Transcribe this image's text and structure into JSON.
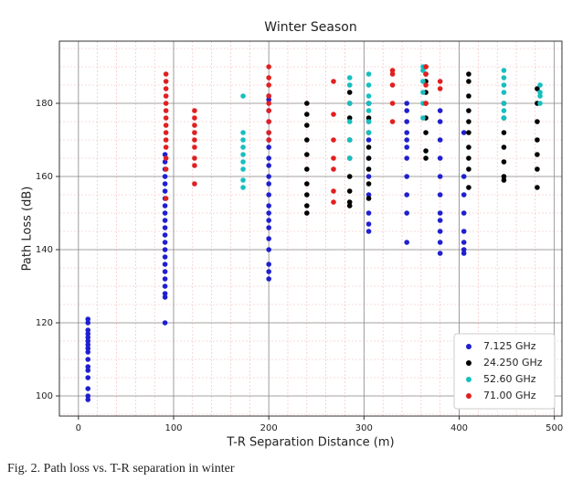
{
  "chart_data": {
    "type": "scatter",
    "title": "Winter Season",
    "x_label": "T-R Separation Distance (m)",
    "y_label": "Path Loss (dB)",
    "caption": "Fig. 2.  Path loss vs. T-R separation in winter",
    "xlim": [
      -20,
      508
    ],
    "ylim": [
      94.5,
      197
    ],
    "xticks": [
      0,
      100,
      200,
      300,
      400,
      500
    ],
    "yticks": [
      100,
      120,
      140,
      160,
      180
    ],
    "grid": true,
    "minor_grid": true,
    "legend": "lower right",
    "series": [
      {
        "name": "7.125 GHz",
        "color": "#1f1fd0",
        "x": [
          10,
          10,
          10,
          10,
          10,
          10,
          10,
          10,
          10,
          10,
          10,
          10,
          10,
          10,
          10,
          10,
          91,
          91,
          91,
          91,
          91,
          91,
          91,
          91,
          91,
          91,
          91,
          91,
          91,
          91,
          91,
          91,
          91,
          91,
          91,
          91,
          91,
          91,
          200,
          200,
          200,
          200,
          200,
          200,
          200,
          200,
          200,
          200,
          200,
          200,
          200,
          200,
          200,
          200,
          200,
          200,
          200,
          200,
          200,
          305,
          305,
          305,
          305,
          305,
          305,
          305,
          305,
          305,
          345,
          345,
          345,
          345,
          345,
          345,
          345,
          345,
          345,
          345,
          345,
          380,
          380,
          380,
          380,
          380,
          380,
          380,
          380,
          380,
          380,
          380,
          405,
          405,
          405,
          405,
          405,
          405,
          405,
          405
        ],
        "values": [
          99,
          100,
          102,
          105,
          107,
          108,
          110,
          112,
          113,
          114,
          115,
          116,
          117,
          118,
          120,
          121,
          120,
          127,
          128,
          130,
          132,
          134,
          136,
          138,
          140,
          142,
          144,
          146,
          148,
          150,
          152,
          154,
          156,
          158,
          160,
          162,
          164,
          166,
          132,
          134,
          136,
          140,
          143,
          146,
          148,
          150,
          152,
          155,
          158,
          160,
          163,
          165,
          168,
          170,
          172,
          175,
          178,
          181,
          182,
          145,
          147,
          150,
          155,
          160,
          165,
          170,
          175,
          180,
          142,
          150,
          155,
          160,
          165,
          168,
          170,
          172,
          175,
          178,
          180,
          139,
          142,
          145,
          148,
          150,
          155,
          160,
          165,
          170,
          175,
          178,
          139,
          140,
          142,
          145,
          150,
          155,
          160,
          172
        ]
      },
      {
        "name": "24.250 GHz",
        "color": "#000000",
        "x": [
          240,
          240,
          240,
          240,
          240,
          240,
          240,
          240,
          240,
          240,
          285,
          285,
          285,
          285,
          285,
          285,
          285,
          285,
          285,
          305,
          305,
          305,
          305,
          305,
          305,
          305,
          305,
          365,
          365,
          365,
          365,
          365,
          365,
          365,
          365,
          365,
          410,
          410,
          410,
          410,
          410,
          410,
          410,
          410,
          410,
          410,
          447,
          447,
          447,
          447,
          447,
          447,
          447,
          482,
          482,
          482,
          482,
          482,
          482,
          482
        ],
        "values": [
          150,
          152,
          155,
          158,
          162,
          166,
          170,
          174,
          177,
          180,
          152,
          153,
          156,
          160,
          165,
          170,
          176,
          180,
          183,
          154,
          158,
          162,
          165,
          168,
          172,
          176,
          180,
          165,
          167,
          172,
          176,
          180,
          183,
          186,
          188,
          190,
          157,
          162,
          165,
          168,
          172,
          175,
          178,
          182,
          186,
          188,
          159,
          160,
          164,
          168,
          172,
          176,
          180,
          157,
          162,
          166,
          170,
          175,
          180,
          184
        ]
      },
      {
        "name": "52.60 GHz",
        "color": "#17bfbf",
        "x": [
          173,
          173,
          173,
          173,
          173,
          173,
          173,
          173,
          173,
          285,
          285,
          285,
          285,
          285,
          285,
          305,
          305,
          305,
          305,
          305,
          305,
          305,
          362,
          362,
          362,
          362,
          362,
          362,
          447,
          447,
          447,
          447,
          447,
          447,
          447,
          485,
          485,
          485,
          485
        ],
        "values": [
          157,
          159,
          162,
          164,
          166,
          168,
          170,
          172,
          182,
          165,
          170,
          175,
          180,
          185,
          187,
          172,
          175,
          178,
          180,
          182,
          185,
          188,
          176,
          180,
          183,
          186,
          189,
          190,
          176,
          178,
          180,
          183,
          185,
          187,
          189,
          180,
          182,
          183,
          185
        ]
      },
      {
        "name": "71.00 GHz",
        "color": "#e02020",
        "x": [
          92,
          92,
          92,
          92,
          92,
          92,
          92,
          92,
          92,
          92,
          92,
          92,
          92,
          92,
          122,
          122,
          122,
          122,
          122,
          122,
          122,
          122,
          122,
          200,
          200,
          200,
          200,
          200,
          200,
          200,
          200,
          200,
          268,
          268,
          268,
          268,
          268,
          268,
          268,
          330,
          330,
          330,
          330,
          330,
          365,
          365,
          365,
          365,
          380,
          380
        ],
        "values": [
          154,
          162,
          165,
          168,
          170,
          172,
          174,
          176,
          178,
          180,
          182,
          184,
          186,
          188,
          158,
          163,
          165,
          168,
          170,
          172,
          174,
          176,
          178,
          170,
          172,
          175,
          178,
          180,
          182,
          185,
          187,
          190,
          153,
          156,
          162,
          165,
          170,
          177,
          186,
          175,
          180,
          185,
          188,
          189,
          180,
          185,
          188,
          190,
          184,
          186
        ]
      }
    ]
  }
}
